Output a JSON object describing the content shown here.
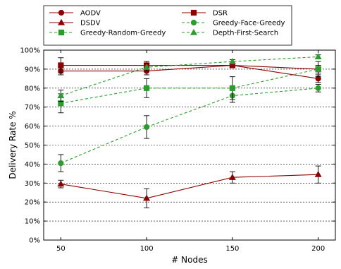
{
  "chart_data": {
    "type": "line",
    "xlabel": "# Nodes",
    "ylabel": "Delivery Rate %",
    "x": [
      50,
      100,
      150,
      200
    ],
    "xlim": [
      40,
      210
    ],
    "ylim": [
      0,
      100
    ],
    "yticks": [
      0,
      10,
      20,
      30,
      40,
      50,
      60,
      70,
      80,
      90,
      100
    ],
    "ytick_labels": [
      "0%",
      "10%",
      "20%",
      "30%",
      "40%",
      "50%",
      "60%",
      "70%",
      "80%",
      "90%",
      "100%"
    ],
    "xticks": [
      50,
      100,
      150,
      200
    ],
    "xtick_labels": [
      "50",
      "100",
      "150",
      "200"
    ],
    "grid": "horizontal dashed",
    "legend_position": "top, above plot, two columns",
    "series": [
      {
        "name": "AODV",
        "color": "#8b0000",
        "marker": "circle",
        "linestyle": "solid",
        "values": [
          89,
          89,
          92,
          85
        ],
        "errors": [
          2,
          2,
          1,
          2
        ]
      },
      {
        "name": "DSR",
        "color": "#8b0000",
        "marker": "square",
        "linestyle": "solid",
        "values": [
          92,
          92,
          92,
          90
        ],
        "errors": [
          4,
          2,
          1,
          2
        ]
      },
      {
        "name": "DSDV",
        "color": "#8b0000",
        "marker": "triangle",
        "linestyle": "solid",
        "values": [
          29.5,
          22,
          33,
          34.5
        ],
        "errors": [
          2,
          5,
          3,
          4.5
        ]
      },
      {
        "name": "Greedy-Face-Greedy",
        "color": "#2e9b2e",
        "marker": "circle",
        "linestyle": "dashed",
        "values": [
          40.5,
          59.5,
          76,
          80
        ],
        "errors": [
          4.5,
          6,
          3.5,
          2
        ]
      },
      {
        "name": "Greedy-Random-Greedy",
        "color": "#2e9b2e",
        "marker": "square",
        "linestyle": "dashed",
        "values": [
          72,
          80,
          80,
          90
        ],
        "errors": [
          5,
          5,
          6,
          4
        ]
      },
      {
        "name": "Depth-First-Search",
        "color": "#2e9b2e",
        "marker": "triangle",
        "linestyle": "dashed",
        "values": [
          76,
          91,
          94,
          96.5
        ],
        "errors": [
          3,
          2,
          1,
          1
        ]
      }
    ]
  }
}
